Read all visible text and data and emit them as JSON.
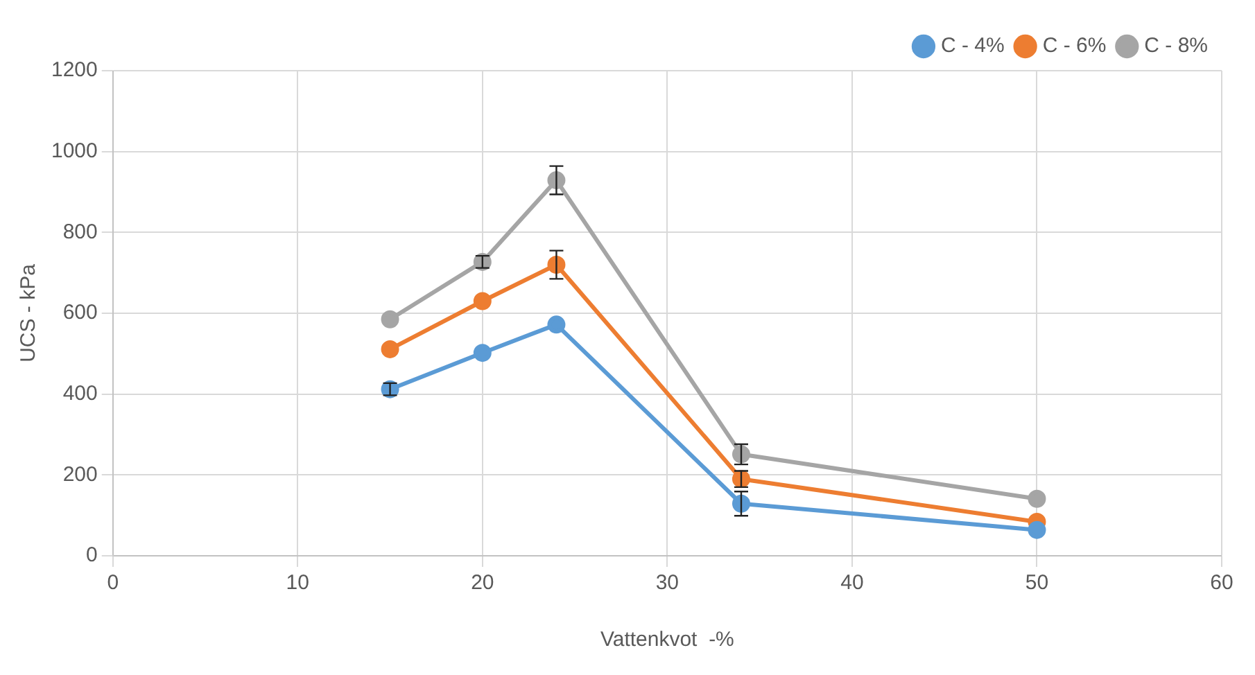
{
  "chart_data": {
    "type": "line",
    "xlabel": "Vattenkvot  -%",
    "ylabel": "UCS - kPa",
    "x": [
      15,
      20,
      24,
      34,
      50
    ],
    "series": [
      {
        "name": "C - 4%",
        "color": "#5b9bd5",
        "values": [
          412,
          502,
          572,
          129,
          64
        ],
        "errors": [
          15,
          null,
          null,
          30,
          null
        ]
      },
      {
        "name": "C - 6%",
        "color": "#ed7d31",
        "values": [
          511,
          630,
          720,
          190,
          84
        ],
        "errors": [
          null,
          null,
          35,
          20,
          null
        ]
      },
      {
        "name": "C - 8%",
        "color": "#a5a5a5",
        "values": [
          585,
          727,
          929,
          251,
          141
        ],
        "errors": [
          null,
          15,
          35,
          25,
          null
        ]
      }
    ],
    "xlim": [
      0,
      60
    ],
    "xticks": [
      0,
      10,
      20,
      30,
      40,
      50,
      60
    ],
    "ylim": [
      0,
      1200
    ],
    "yticks": [
      0,
      200,
      400,
      600,
      800,
      1000,
      1200
    ],
    "grid": true,
    "legend": "top right",
    "marker": "circle",
    "line_style": "solid"
  }
}
